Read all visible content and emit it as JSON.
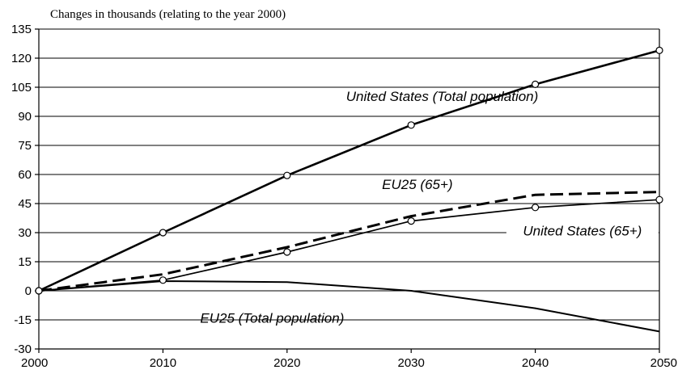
{
  "chart_data": {
    "type": "line",
    "title": "Changes in thousands (relating to the year 2000)",
    "xlabel": "",
    "ylabel": "",
    "x": [
      2000,
      2010,
      2020,
      2030,
      2040,
      2050
    ],
    "xlim": [
      2000,
      2050
    ],
    "ylim": [
      -30,
      135
    ],
    "yticks": [
      135,
      120,
      105,
      90,
      75,
      60,
      45,
      30,
      15,
      0,
      -15,
      -30
    ],
    "xticks": [
      2000,
      2010,
      2020,
      2030,
      2040,
      2050
    ],
    "grid": true,
    "series": [
      {
        "name": "United States (Total population)",
        "values": [
          0,
          30,
          59.5,
          85.5,
          106.5,
          124
        ],
        "style": "solid",
        "markers": true,
        "stroke_width": 2.6
      },
      {
        "name": "EU25 (65+)",
        "values": [
          0,
          8.5,
          22.5,
          38.5,
          49.5,
          51
        ],
        "style": "dashed",
        "markers": false,
        "stroke_width": 3
      },
      {
        "name": "United States (65+)",
        "values": [
          0,
          5.5,
          20,
          36,
          43,
          47
        ],
        "style": "solid",
        "markers": true,
        "stroke_width": 1.7
      },
      {
        "name": "EU25 (Total population)",
        "values": [
          0,
          5,
          4.5,
          0,
          -9,
          -21
        ],
        "style": "solid",
        "markers": false,
        "stroke_width": 2
      }
    ],
    "colors": {
      "line": "#000000",
      "marker_fill": "#ffffff",
      "background": "#ffffff"
    }
  }
}
